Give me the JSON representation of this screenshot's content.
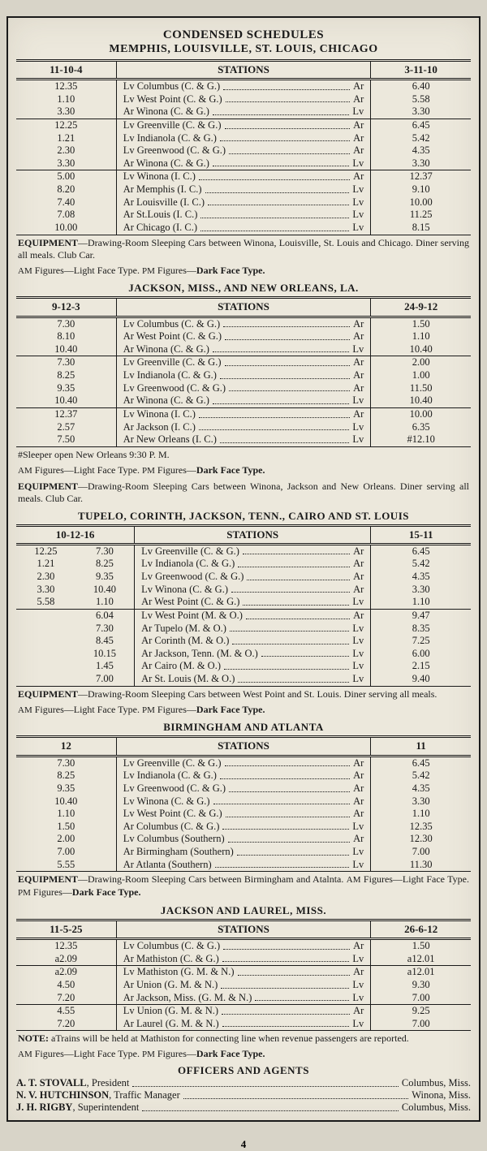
{
  "page_number": "4",
  "main_title": "CONDENSED SCHEDULES",
  "main_subtitle": "MEMPHIS, LOUISVILLE, ST. LOUIS, CHICAGO",
  "sections": [
    {
      "title": "",
      "left_header": "11-10-4",
      "mid_header": "STATIONS",
      "right_header": "3-11-10",
      "groups": [
        {
          "rows": [
            {
              "l": "12.35",
              "stn": "Lv Columbus (C. & G.)",
              "ar": "Ar",
              "r": "6.40"
            },
            {
              "l": "1.10",
              "stn": "Lv West Point (C. & G.)",
              "ar": "Ar",
              "r": "5.58"
            },
            {
              "l": "3.30",
              "stn": "Ar Winona (C. & G.)",
              "ar": "Lv",
              "r": "3.30"
            }
          ]
        },
        {
          "rows": [
            {
              "l": "12.25",
              "stn": "Lv Greenville (C. & G.)",
              "ar": "Ar",
              "r": "6.45"
            },
            {
              "l": "1.21",
              "stn": "Lv Indianola (C. & G.)",
              "ar": "Ar",
              "r": "5.42"
            },
            {
              "l": "2.30",
              "stn": "Lv Greenwood (C. & G.)",
              "ar": "Ar",
              "r": "4.35"
            },
            {
              "l": "3.30",
              "stn": "Ar Winona (C. & G.)",
              "ar": "Lv",
              "r": "3.30"
            }
          ]
        },
        {
          "rows": [
            {
              "l": "5.00",
              "stn": "Lv Winona (I. C.)",
              "ar": "Ar",
              "r": "12.37"
            },
            {
              "l": "8.20",
              "stn": "Ar Memphis (I. C.)",
              "ar": "Lv",
              "r": "9.10"
            },
            {
              "l": "7.40",
              "stn": "Ar Louisville (I. C.)",
              "ar": "Lv",
              "r": "10.00"
            },
            {
              "l": "7.08",
              "stn": "Ar St.Louis (I. C.)",
              "ar": "Lv",
              "r": "11.25"
            },
            {
              "l": "10.00",
              "stn": "Ar Chicago (I. C.)",
              "ar": "Lv",
              "r": "8.15"
            }
          ]
        }
      ],
      "equipment": "EQUIPMENT—Drawing-Room Sleeping Cars between Winona, Louisville, St. Louis and Chicago. Diner serving all meals. Club Car.",
      "figures_note": "AM Figures—Light Face Type.  PM Figures—Dark Face Type."
    },
    {
      "title": "JACKSON, MISS., AND NEW ORLEANS, LA.",
      "left_header": "9-12-3",
      "mid_header": "STATIONS",
      "right_header": "24-9-12",
      "groups": [
        {
          "rows": [
            {
              "l": "7.30",
              "stn": "Lv Columbus (C. & G.)",
              "ar": "Ar",
              "r": "1.50"
            },
            {
              "l": "8.10",
              "stn": "Ar West Point (C. & G.)",
              "ar": "Ar",
              "r": "1.10"
            },
            {
              "l": "10.40",
              "stn": "Ar Winona (C. & G.)",
              "ar": "Lv",
              "r": "10.40"
            }
          ]
        },
        {
          "rows": [
            {
              "l": "7.30",
              "stn": "Lv Greenville (C. & G.)",
              "ar": "Ar",
              "r": "2.00"
            },
            {
              "l": "8.25",
              "stn": "Lv Indianola (C. & G.)",
              "ar": "Ar",
              "r": "1.00"
            },
            {
              "l": "9.35",
              "stn": "Lv Greenwood (C. & G.)",
              "ar": "Ar",
              "r": "11.50"
            },
            {
              "l": "10.40",
              "stn": "Ar Winona (C. & G.)",
              "ar": "Lv",
              "r": "10.40"
            }
          ]
        },
        {
          "rows": [
            {
              "l": "12.37",
              "stn": "Lv Winona (I. C.)",
              "ar": "Ar",
              "r": "10.00"
            },
            {
              "l": "2.57",
              "stn": "Ar Jackson (I. C.)",
              "ar": "Lv",
              "r": "6.35"
            },
            {
              "l": "7.50",
              "stn": "Ar New Orleans (I. C.)",
              "ar": "Lv",
              "r": "#12.10"
            }
          ]
        }
      ],
      "pre_equipment_note": "#Sleeper open New Orleans 9:30 P. M.",
      "figures_note": "AM Figures—Light Face Type.  PM Figures—Dark Face Type.",
      "equipment": "EQUIPMENT—Drawing-Room Sleeping Cars between Winona, Jackson and New Orleans. Diner serving all meals. Club Car."
    },
    {
      "title": "TUPELO, CORINTH, JACKSON, TENN., CAIRO AND ST. LOUIS",
      "left_header2": "10-12-16",
      "mid_header": "STATIONS",
      "right_header": "15-11",
      "two_left_cols": true,
      "groups": [
        {
          "rows": [
            {
              "l1": "12.25",
              "l2": "7.30",
              "stn": "Lv Greenville (C. & G.)",
              "ar": "Ar",
              "r": "6.45"
            },
            {
              "l1": "1.21",
              "l2": "8.25",
              "stn": "Lv Indianola (C. & G.)",
              "ar": "Ar",
              "r": "5.42"
            },
            {
              "l1": "2.30",
              "l2": "9.35",
              "stn": "Lv Greenwood (C. & G.)",
              "ar": "Ar",
              "r": "4.35"
            },
            {
              "l1": "3.30",
              "l2": "10.40",
              "stn": "Lv Winona (C. & G.)",
              "ar": "Ar",
              "r": "3.30"
            },
            {
              "l1": "5.58",
              "l2": "1.10",
              "stn": "Ar West Point (C. & G.)",
              "ar": "Lv",
              "r": "1.10"
            }
          ]
        },
        {
          "rows": [
            {
              "l1": "",
              "l2": "6.04",
              "stn": "Lv West Point (M. & O.)",
              "ar": "Ar",
              "r": "9.47"
            },
            {
              "l1": "",
              "l2": "7.30",
              "stn": "Ar Tupelo (M. & O.)",
              "ar": "Lv",
              "r": "8.35"
            },
            {
              "l1": "",
              "l2": "8.45",
              "stn": "Ar Corinth (M. & O.)",
              "ar": "Lv",
              "r": "7.25"
            },
            {
              "l1": "",
              "l2": "10.15",
              "stn": "Ar Jackson, Tenn. (M. & O.)",
              "ar": "Lv",
              "r": "6.00"
            },
            {
              "l1": "",
              "l2": "1.45",
              "stn": "Ar Cairo (M. & O.)",
              "ar": "Lv",
              "r": "2.15"
            },
            {
              "l1": "",
              "l2": "7.00",
              "stn": "Ar St. Louis (M. & O.)",
              "ar": "Lv",
              "r": "9.40"
            }
          ]
        }
      ],
      "equipment": "EQUIPMENT—Drawing-Room Sleeping Cars between West Point and St. Louis. Diner serving all meals.",
      "figures_note": "AM Figures—Light Face Type.  PM Figures—Dark Face Type."
    },
    {
      "title": "BIRMINGHAM AND ATLANTA",
      "left_header": "12",
      "mid_header": "STATIONS",
      "right_header": "11",
      "groups": [
        {
          "rows": [
            {
              "l": "7.30",
              "stn": "Lv Greenville (C. & G.)",
              "ar": "Ar",
              "r": "6.45"
            },
            {
              "l": "8.25",
              "stn": "Lv Indianola (C. & G.)",
              "ar": "Ar",
              "r": "5.42"
            },
            {
              "l": "9.35",
              "stn": "Lv Greenwood (C. & G.)",
              "ar": "Ar",
              "r": "4.35"
            },
            {
              "l": "10.40",
              "stn": "Lv Winona (C. & G.)",
              "ar": "Ar",
              "r": "3.30"
            },
            {
              "l": "1.10",
              "stn": "Lv West Point (C. & G.)",
              "ar": "Ar",
              "r": "1.10"
            },
            {
              "l": "1.50",
              "stn": "Ar Columbus (C. & G.)",
              "ar": "Lv",
              "r": "12.35"
            },
            {
              "l": "2.00",
              "stn": "Lv Columbus (Southern)",
              "ar": "Ar",
              "r": "12.30"
            },
            {
              "l": "7.00",
              "stn": "Ar Birmingham (Southern)",
              "ar": "Lv",
              "r": "7.00"
            },
            {
              "l": "5.55",
              "stn": "Ar Atlanta (Southern)",
              "ar": "Lv",
              "r": "11.30"
            }
          ]
        }
      ],
      "equipment": "EQUIPMENT—Drawing-Room Sleeping Cars between Birmingham and Atalnta.  AM Figures—Light Face Type.  PM Figures—Dark Face Type."
    },
    {
      "title": "JACKSON AND LAUREL, MISS.",
      "left_header": "11-5-25",
      "mid_header": "STATIONS",
      "right_header": "26-6-12",
      "groups": [
        {
          "rows": [
            {
              "l": "12.35",
              "stn": "Lv Columbus (C. & G.)",
              "ar": "Ar",
              "r": "1.50"
            },
            {
              "l": "a2.09",
              "stn": "Ar Mathiston (C. & G.)",
              "ar": "Lv",
              "r": "a12.01"
            }
          ]
        },
        {
          "rows": [
            {
              "l": "a2.09",
              "stn": "Lv Mathiston (G. M. & N.)",
              "ar": "Ar",
              "r": "a12.01"
            },
            {
              "l": "4.50",
              "stn": "Ar Union (G. M. & N.)",
              "ar": "Lv",
              "r": "9.30"
            },
            {
              "l": "7.20",
              "stn": "Ar Jackson, Miss. (G. M. & N.)",
              "ar": "Lv",
              "r": "7.00"
            }
          ]
        },
        {
          "rows": [
            {
              "l": "4.55",
              "stn": "Lv Union (G. M. & N.)",
              "ar": "Ar",
              "r": "9.25"
            },
            {
              "l": "7.20",
              "stn": "Ar Laurel (G. M. & N.)",
              "ar": "Lv",
              "r": "7.00"
            }
          ]
        }
      ],
      "note": "NOTE: aTrains will be held at Mathiston for connecting line when revenue passengers are reported.",
      "figures_note": "AM Figures—Light Face Type.  PM Figures—Dark Face Type."
    }
  ],
  "officers_title": "OFFICERS AND AGENTS",
  "officers": [
    {
      "name": "A. T. STOVALL, President",
      "city": "Columbus, Miss."
    },
    {
      "name": "N. V. HUTCHINSON, Traffic Manager",
      "city": "Winona, Miss."
    },
    {
      "name": "J. H. RIGBY, Superintendent",
      "city": "Columbus, Miss."
    }
  ],
  "colors": {
    "paper": "#ece8dc",
    "ink": "#1a1a1a",
    "background": "#d8d4c8"
  }
}
